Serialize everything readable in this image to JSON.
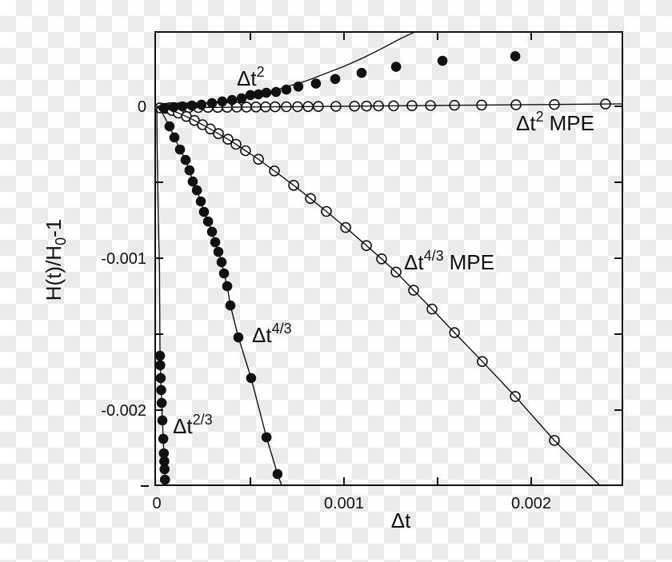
{
  "colors": {
    "ink": "#111111",
    "checker_light": "#ffffff",
    "checker_dark": "#ebebeb"
  },
  "annotations": [
    {
      "base": "Δt",
      "sup": "2",
      "suffix": ""
    },
    {
      "base": "Δt",
      "sup": "2",
      "suffix": "MPE"
    },
    {
      "base": "Δt",
      "sup": "4/3",
      "suffix": "MPE"
    },
    {
      "base": "Δt",
      "sup": "4/3",
      "suffix": ""
    },
    {
      "base": "Δt",
      "sup": "2/3",
      "suffix": ""
    }
  ],
  "chart_data": {
    "type": "scatter",
    "title": "",
    "xlabel": "Δt",
    "ylabel_parts": {
      "pre": "H(t)/H",
      "sub": "0",
      "post": "-1"
    },
    "xlim": [
      0,
      0.0025
    ],
    "ylim": [
      -0.0025,
      0.0005
    ],
    "grid": false,
    "x_ticks": [
      {
        "v": 0,
        "label": "0",
        "corner": true
      },
      {
        "v": 0.0005
      },
      {
        "v": 0.001,
        "label": "0.001"
      },
      {
        "v": 0.0015
      },
      {
        "v": 0.002,
        "label": "0.002"
      }
    ],
    "y_ticks": [
      {
        "v": 0,
        "label": "0"
      },
      {
        "v": -0.0005
      },
      {
        "v": -0.001,
        "label": "-0.001"
      },
      {
        "v": -0.0015
      },
      {
        "v": -0.002,
        "label": "-0.002"
      },
      {
        "v": -0.0025,
        "outward": true
      }
    ],
    "series": [
      {
        "name": "dt2_mpe",
        "label": "Δt^2 MPE",
        "marker": "open",
        "points": [
          [
            1.7e-05,
            -9.8e-06
          ],
          [
            6.8e-05,
            -9.3e-06
          ],
          [
            0.00012,
            -8.7e-06
          ],
          [
            0.000171,
            -8.2e-06
          ],
          [
            0.000222,
            -7.7e-06
          ],
          [
            0.000274,
            -7.1e-06
          ],
          [
            0.000325,
            -6.6e-06
          ],
          [
            0.000376,
            -6.1e-06
          ],
          [
            0.000427,
            -5.5e-06
          ],
          [
            0.000479,
            -5e-06
          ],
          [
            0.00053,
            -4.4e-06
          ],
          [
            0.000581,
            -3.9e-06
          ],
          [
            0.000632,
            -3.4e-06
          ],
          [
            0.000692,
            -2.7e-06
          ],
          [
            0.000752,
            -2.1e-06
          ],
          [
            0.000808,
            -1.5e-06
          ],
          [
            0.000863,
            -9e-07
          ],
          [
            0.000957,
            1e-07
          ],
          [
            0.001056,
            1.1e-06
          ],
          [
            0.00112,
            1.8e-06
          ],
          [
            0.001184,
            2.4e-06
          ],
          [
            0.001265,
            3.3e-06
          ],
          [
            0.001363,
            4.3e-06
          ],
          [
            0.001462,
            5.4e-06
          ],
          [
            0.00159,
            6.7e-06
          ],
          [
            0.001735,
            8.2e-06
          ],
          [
            0.001919,
            1.01e-05
          ],
          [
            0.002124,
            1.23e-05
          ],
          [
            0.002397,
            1.52e-05
          ]
        ],
        "line": {
          "through": true,
          "pre": [
            [
              0,
              -1e-05
            ]
          ],
          "ext": [
            [
              0.00249,
              1.62e-05
            ]
          ]
        }
      },
      {
        "name": "dt43_mpe",
        "label": "Δt^4/3 MPE",
        "marker": "open",
        "points": [
          [
            4.7e-05,
            -1.33e-05
          ],
          [
            8.1e-05,
            -2.76e-05
          ],
          [
            0.000115,
            -4.4e-05
          ],
          [
            0.000158,
            -6.7e-05
          ],
          [
            0.000201,
            -9.3e-05
          ],
          [
            0.000244,
            -0.000121
          ],
          [
            0.000286,
            -0.000149
          ],
          [
            0.000329,
            -0.00018
          ],
          [
            0.00038,
            -0.000217
          ],
          [
            0.000423,
            -0.00025
          ],
          [
            0.000474,
            -0.000292
          ],
          [
            0.000543,
            -0.000349
          ],
          [
            0.000628,
            -0.000425
          ],
          [
            0.000731,
            -0.00052
          ],
          [
            0.000821,
            -0.000607
          ],
          [
            0.000906,
            -0.000692
          ],
          [
            0.001009,
            -0.000798
          ],
          [
            0.00112,
            -0.000917
          ],
          [
            0.001201,
            -0.001004
          ],
          [
            0.001278,
            -0.001091
          ],
          [
            0.001372,
            -0.001211
          ],
          [
            0.00147,
            -0.001335
          ],
          [
            0.00159,
            -0.00149
          ],
          [
            0.001739,
            -0.00168
          ],
          [
            0.001915,
            -0.00191
          ],
          [
            0.002124,
            -0.0022
          ]
        ],
        "line": {
          "through": true,
          "pre": [
            [
              0,
              0
            ]
          ],
          "ext": [
            [
              0.00237,
              -0.0025
            ]
          ]
        }
      },
      {
        "name": "dt2",
        "label": "Δt^2",
        "marker": "filled",
        "points": [
          [
            3.8e-05,
            -1.1e-05
          ],
          [
            9e-05,
            -5e-06
          ],
          [
            0.000137,
            0
          ],
          [
            0.000188,
            5e-06
          ],
          [
            0.000239,
            1.1e-05
          ],
          [
            0.000295,
            2.1e-05
          ],
          [
            0.00035,
            3.2e-05
          ],
          [
            0.000402,
            4.2e-05
          ],
          [
            0.000453,
            5.3e-05
          ],
          [
            0.0005,
            7.4e-05
          ],
          [
            0.000543,
            7.9e-05
          ],
          [
            0.000585,
            8.9e-05
          ],
          [
            0.000637,
            9.5e-05
          ],
          [
            0.000692,
            0.00011
          ],
          [
            0.000756,
            0.00013
          ],
          [
            0.00085,
            0.00015
          ],
          [
            0.000953,
            0.00018
          ],
          [
            0.001094,
            0.00022
          ],
          [
            0.001278,
            0.00026
          ],
          [
            0.001526,
            0.0003
          ],
          [
            0.001915,
            0.00033
          ]
        ],
        "line": {
          "through": false,
          "points": [
            [
              0,
              0
            ],
            [
              0.0002,
              1.05e-05
            ],
            [
              0.0004,
              4.21e-05
            ],
            [
              0.0006,
              9.47e-05
            ],
            [
              0.0008,
              0.000168
            ],
            [
              0.001,
              0.000263
            ],
            [
              0.0011,
              0.000318
            ],
            [
              0.0012,
              0.000379
            ],
            [
              0.0013,
              0.000445
            ],
            [
              0.001379,
              0.00049
            ]
          ]
        }
      },
      {
        "name": "dt43",
        "label": "Δt^4/3",
        "marker": "filled",
        "points": [
          [
            6.8e-05,
            -0.000132
          ],
          [
            9.4e-05,
            -0.000205
          ],
          [
            0.000124,
            -0.000284
          ],
          [
            0.000154,
            -0.000353
          ],
          [
            0.000175,
            -0.000421
          ],
          [
            0.000192,
            -0.000495
          ],
          [
            0.000214,
            -0.000553
          ],
          [
            0.000235,
            -0.000626
          ],
          [
            0.000252,
            -0.000695
          ],
          [
            0.000274,
            -0.000758
          ],
          [
            0.000295,
            -0.000826
          ],
          [
            0.000312,
            -0.000895
          ],
          [
            0.000329,
            -0.000958
          ],
          [
            0.000346,
            -0.001026
          ],
          [
            0.000359,
            -0.0011
          ],
          [
            0.000376,
            -0.001184
          ],
          [
            0.000393,
            -0.001311
          ],
          [
            0.000436,
            -0.001521
          ],
          [
            0.000504,
            -0.001789
          ],
          [
            0.000586,
            -0.002179
          ],
          [
            0.000645,
            -0.002421
          ]
        ],
        "line": {
          "through": true,
          "pre": [
            [
              0,
              0
            ],
            [
              3e-05,
              -4.5e-05
            ]
          ],
          "ext": [
            [
              0.000667,
              -0.002495
            ]
          ]
        }
      },
      {
        "name": "dt23",
        "label": "Δt^2/3",
        "marker": "filled",
        "points": [
          [
            1.7e-05,
            -0.001642
          ],
          [
            1.85e-05,
            -0.001705
          ],
          [
            2.1e-05,
            -0.001789
          ],
          [
            2.35e-05,
            -0.001868
          ],
          [
            2.6e-05,
            -0.001953
          ],
          [
            3e-05,
            -0.002068
          ],
          [
            3.45e-05,
            -0.002189
          ],
          [
            3.75e-05,
            -0.002284
          ],
          [
            4e-05,
            -0.002337
          ],
          [
            4.15e-05,
            -0.002389
          ],
          [
            4.35e-05,
            -0.002458
          ]
        ],
        "line": {
          "through": true,
          "pre": [
            [
              0,
              0
            ],
            [
              2e-06,
              -0.00029
            ],
            [
              5e-06,
              -0.00053
            ],
            [
              1e-05,
              -0.00084
            ],
            [
              1.4e-05,
              -0.00105
            ]
          ],
          "ext": [
            [
              4.75e-05,
              -0.002495
            ]
          ]
        }
      }
    ]
  }
}
